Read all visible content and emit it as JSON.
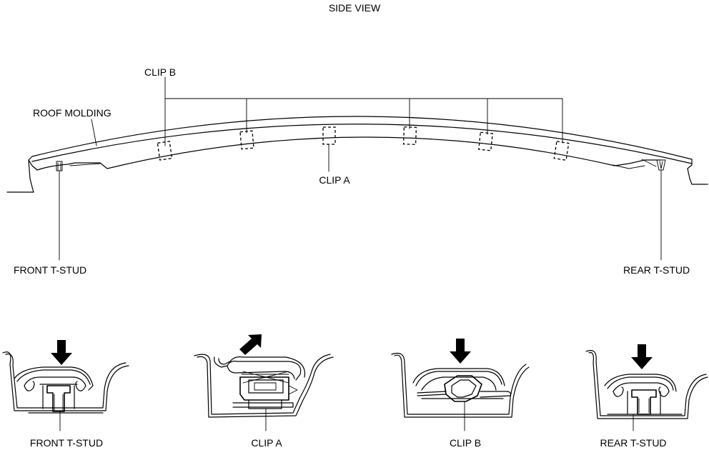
{
  "diagram": {
    "title": "SIDE VIEW",
    "callouts": {
      "clip_b": "CLIP B",
      "roof_molding": "ROOF MOLDING",
      "clip_a": "CLIP A",
      "front_t_stud": "FRONT T-STUD",
      "rear_t_stud": "REAR T-STUD"
    },
    "detail_captions": [
      "FRONT T-STUD",
      "CLIP A",
      "CLIP B",
      "REAR T-STUD"
    ]
  }
}
